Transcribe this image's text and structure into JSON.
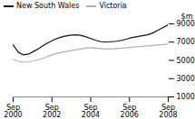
{
  "chart_data": {
    "type": "line",
    "y_label": "$m",
    "ylim": [
      1000,
      9000
    ],
    "yticks": [
      1000,
      3000,
      5000,
      7000,
      9000
    ],
    "xticks": [
      "Sep\n2000",
      "Sep\n2002",
      "Sep\n2004",
      "Sep\n2006",
      "Sep\n2008"
    ],
    "legend": "upper left",
    "series": [
      {
        "name": "New South Wales",
        "color": "#111111",
        "values": [
          6700,
          5900,
          5600,
          5700,
          6000,
          6300,
          6700,
          7000,
          7300,
          7500,
          7650,
          7750,
          7800,
          7750,
          7600,
          7400,
          7200,
          7050,
          7000,
          7050,
          7100,
          7200,
          7350,
          7500,
          7600,
          7700,
          7800,
          8000,
          8300,
          8600,
          8900
        ]
      },
      {
        "name": "Victoria",
        "color": "#b0b0b0",
        "values": [
          5100,
          4900,
          4800,
          4850,
          4950,
          5100,
          5300,
          5500,
          5700,
          5850,
          5950,
          6050,
          6150,
          6250,
          6350,
          6400,
          6350,
          6300,
          6250,
          6250,
          6300,
          6350,
          6400,
          6450,
          6500,
          6550,
          6600,
          6650,
          6700,
          6750,
          6800
        ]
      }
    ]
  }
}
